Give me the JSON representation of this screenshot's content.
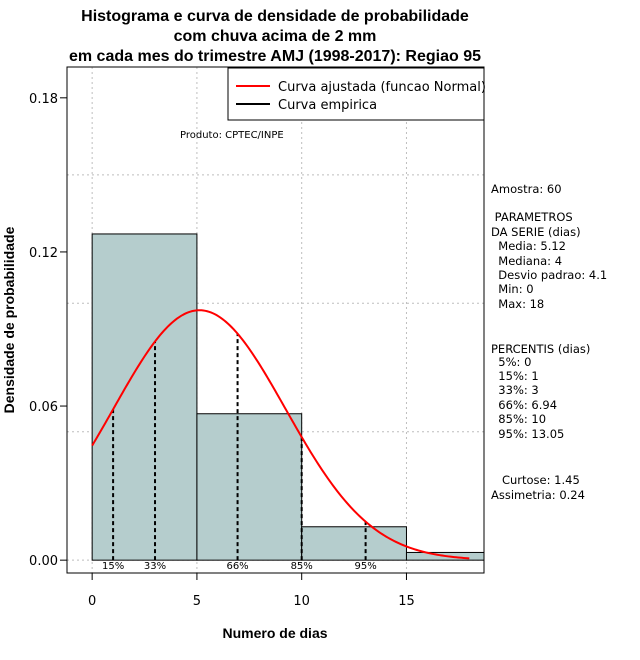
{
  "chart_data": {
    "type": "histogram",
    "title": [
      "Histograma e curva de densidade de probabilidade",
      "com chuva acima de 2 mm",
      "em cada mes do trimestre AMJ (1998-2017): Regiao 95"
    ],
    "xlabel": "Numero de dias",
    "ylabel": "Densidade de probabilidade",
    "xlim": [
      -1.2,
      18.7
    ],
    "ylim": [
      -0.005,
      0.192
    ],
    "x_ticks": [
      0,
      5,
      10,
      15
    ],
    "y_ticks": [
      0.0,
      0.06,
      0.12,
      0.18
    ],
    "x_tick_labels": [
      "0",
      "5",
      "10",
      "15"
    ],
    "y_tick_labels": [
      "0.00",
      "0.06",
      "0.12",
      "0.18"
    ],
    "grid_x": [
      0,
      5,
      10,
      15
    ],
    "grid_y": [
      0.0,
      0.05,
      0.1,
      0.15
    ],
    "bins": [
      {
        "x0": 0,
        "x1": 5,
        "density": 0.127
      },
      {
        "x0": 5,
        "x1": 10,
        "density": 0.057
      },
      {
        "x0": 10,
        "x1": 15,
        "density": 0.013
      },
      {
        "x0": 15,
        "x1": 20,
        "density": 0.003
      }
    ],
    "normal_fit": {
      "mean": 5.12,
      "sd": 4.1,
      "x_from": 0,
      "x_to": 18
    },
    "percentile_lines": [
      {
        "x": 1,
        "label": "15%"
      },
      {
        "x": 3,
        "label": "33%"
      },
      {
        "x": 6.94,
        "label": "66%"
      },
      {
        "x": 10,
        "label": "85%"
      },
      {
        "x": 13.05,
        "label": "95%"
      }
    ],
    "legend": {
      "position": "top-right",
      "entries": [
        {
          "label": "Curva ajustada (funcao Normal)",
          "color": "#ff0000"
        },
        {
          "label": "Curva empirica",
          "color": "#000000"
        }
      ]
    },
    "credit": "Produto: CPTEC/INPE",
    "colors": {
      "bar_fill": "#b5cdcd",
      "curve": "#ff0000",
      "grid": "#bebebe"
    }
  },
  "side_panel": {
    "amostra": "Amostra: 60",
    "param_title_1": " PARAMETROS",
    "param_title_2": "DA SERIE (dias)",
    "params": [
      "  Media: 5.12",
      "  Mediana: 4",
      "  Desvio padrao: 4.1",
      "  Min: 0",
      "  Max: 18"
    ],
    "perc_title": "PERCENTIS (dias)",
    "percentis": [
      "  5%: 0",
      "  15%: 1",
      "  33%: 3",
      "  66%: 6.94",
      "  85%: 10",
      "  95%: 13.05"
    ],
    "curtose": "   Curtose: 1.45",
    "assimetria": "Assimetria: 0.24"
  }
}
